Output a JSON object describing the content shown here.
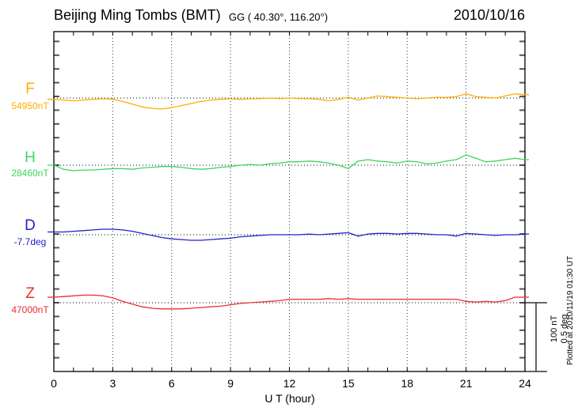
{
  "header": {
    "title": "Beijing Ming Tombs (BMT)",
    "coordinates": "GG ( 40.30°, 116.20°)",
    "date": "2010/10/16"
  },
  "trace_labels": [
    {
      "letter": "F",
      "value": "54950nT",
      "color": "#FFAE00"
    },
    {
      "letter": "H",
      "value": "28460nT",
      "color": "#3CD75A"
    },
    {
      "letter": "D",
      "value": "-7.7deg",
      "color": "#2222CC"
    },
    {
      "letter": "Z",
      "value": "47000nT",
      "color": "#EE2C2C"
    }
  ],
  "axis": {
    "x_tick_labels": [
      "0",
      "3",
      "6",
      "9",
      "12",
      "15",
      "18",
      "21",
      "24"
    ],
    "x_title": "U T (hour)"
  },
  "scale_bar": {
    "line1": "100 nT",
    "line2": "0.5 deg"
  },
  "footer_note": "Plotted at 2010/11/19 01:30 UT",
  "chart_data": {
    "type": "line",
    "title": "Beijing Ming Tombs (BMT)",
    "station_coordinates": "GG ( 40.30°, 116.20°)",
    "date": "2010/10/16",
    "xlabel": "U T (hour)",
    "x_range": [
      0,
      24
    ],
    "x_tick_interval_hours": 3,
    "grid": "dotted vertical every 3h, dotted horizontal baseline per trace",
    "scale_per_division": {
      "nT": 100,
      "deg": 0.5
    },
    "x_step_hours": 0.5,
    "series": [
      {
        "name": "F",
        "unit": "nT",
        "baseline_label": "54950nT",
        "baseline_value": 54950,
        "color": "#FFAE00",
        "offsets": [
          -2,
          -3,
          -4,
          -3,
          -2,
          -1,
          -2,
          -5,
          -9,
          -13,
          -15,
          -16,
          -14,
          -11,
          -8,
          -5,
          -3,
          -2,
          -1,
          -2,
          -1,
          -1,
          0,
          -1,
          0,
          -1,
          -1,
          -2,
          -4,
          -2,
          1,
          -3,
          0,
          3,
          2,
          1,
          0,
          -1,
          0,
          1,
          1,
          2,
          6,
          2,
          1,
          0,
          3,
          6,
          5
        ]
      },
      {
        "name": "H",
        "unit": "nT",
        "baseline_label": "28460nT",
        "baseline_value": 28460,
        "color": "#3CD75A",
        "offsets": [
          0,
          -6,
          -8,
          -7,
          -7,
          -6,
          -5,
          -5,
          -6,
          -4,
          -3,
          -2,
          -2,
          -3,
          -5,
          -6,
          -5,
          -3,
          -2,
          0,
          1,
          0,
          2,
          3,
          5,
          5,
          6,
          5,
          3,
          0,
          -5,
          6,
          8,
          6,
          5,
          3,
          6,
          5,
          2,
          3,
          6,
          8,
          15,
          10,
          5,
          6,
          8,
          10,
          8
        ]
      },
      {
        "name": "D",
        "unit": "deg",
        "baseline_label": "-7.7deg",
        "baseline_value": -7.7,
        "color": "#2222CC",
        "offsets": [
          0.02,
          0.02,
          0.025,
          0.03,
          0.035,
          0.04,
          0.04,
          0.035,
          0.025,
          0.01,
          -0.005,
          -0.02,
          -0.03,
          -0.035,
          -0.04,
          -0.04,
          -0.035,
          -0.03,
          -0.025,
          -0.015,
          -0.01,
          -0.005,
          0,
          0,
          0,
          0,
          0.005,
          0,
          0.005,
          0.01,
          0.015,
          -0.01,
          0.005,
          0.01,
          0.01,
          0.005,
          0.01,
          0.01,
          0.005,
          0,
          0,
          -0.01,
          0.01,
          0.005,
          0,
          -0.005,
          0,
          0,
          0.005
        ]
      },
      {
        "name": "Z",
        "unit": "nT",
        "baseline_label": "47000nT",
        "baseline_value": 47000,
        "color": "#EE2C2C",
        "offsets": [
          8,
          9,
          10,
          11,
          11,
          10,
          7,
          2,
          -2,
          -6,
          -8,
          -9,
          -9,
          -9,
          -8,
          -7,
          -6,
          -5,
          -3,
          -1,
          0,
          1,
          2,
          3,
          5,
          5,
          5,
          5,
          6,
          5,
          6,
          5,
          5,
          5,
          5,
          5,
          5,
          5,
          5,
          5,
          5,
          5,
          2,
          1,
          2,
          1,
          3,
          8,
          8
        ]
      }
    ]
  }
}
